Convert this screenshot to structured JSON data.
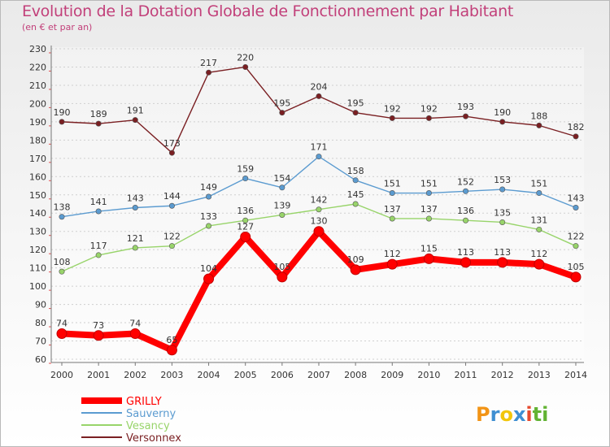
{
  "title": "Evolution de la Dotation Globale de Fonctionnement par Habitant",
  "subtitle": "(en € et par an)",
  "brand": {
    "letters": [
      "P",
      "r",
      "o",
      "x",
      "i",
      "t",
      "i"
    ],
    "colors": [
      "#f29416",
      "#3f8fd2",
      "#f2c60c",
      "#3f8fd2",
      "#e64a2e",
      "#62b333",
      "#62b333"
    ]
  },
  "chart_data": {
    "type": "line",
    "x": [
      "2000",
      "2001",
      "2002",
      "2003",
      "2004",
      "2005",
      "2006",
      "2007",
      "2008",
      "2009",
      "2010",
      "2011",
      "2012",
      "2013",
      "2014"
    ],
    "ylim": [
      60,
      230
    ],
    "yticks": [
      60,
      70,
      80,
      90,
      100,
      110,
      120,
      130,
      140,
      150,
      160,
      170,
      180,
      190,
      200,
      210,
      220,
      230
    ],
    "grid": "horizontal",
    "legend_position": "bottom-left",
    "series": [
      {
        "name": "GRILLY",
        "color": "#ff0000",
        "values": [
          74,
          73,
          74,
          65,
          104,
          127,
          105,
          130,
          109,
          112,
          115,
          113,
          113,
          112,
          105
        ]
      },
      {
        "name": "Sauverny",
        "color": "#5b9bd0",
        "values": [
          138,
          141,
          143,
          144,
          149,
          159,
          154,
          171,
          158,
          151,
          151,
          152,
          153,
          151,
          143
        ]
      },
      {
        "name": "Vesancy",
        "color": "#98d46a",
        "values": [
          108,
          117,
          121,
          122,
          133,
          136,
          139,
          142,
          145,
          137,
          137,
          136,
          135,
          131,
          122
        ]
      },
      {
        "name": "Versonnex",
        "color": "#7a1f22",
        "values": [
          190,
          189,
          191,
          173,
          217,
          220,
          195,
          204,
          195,
          192,
          192,
          193,
          190,
          188,
          182
        ]
      }
    ]
  }
}
